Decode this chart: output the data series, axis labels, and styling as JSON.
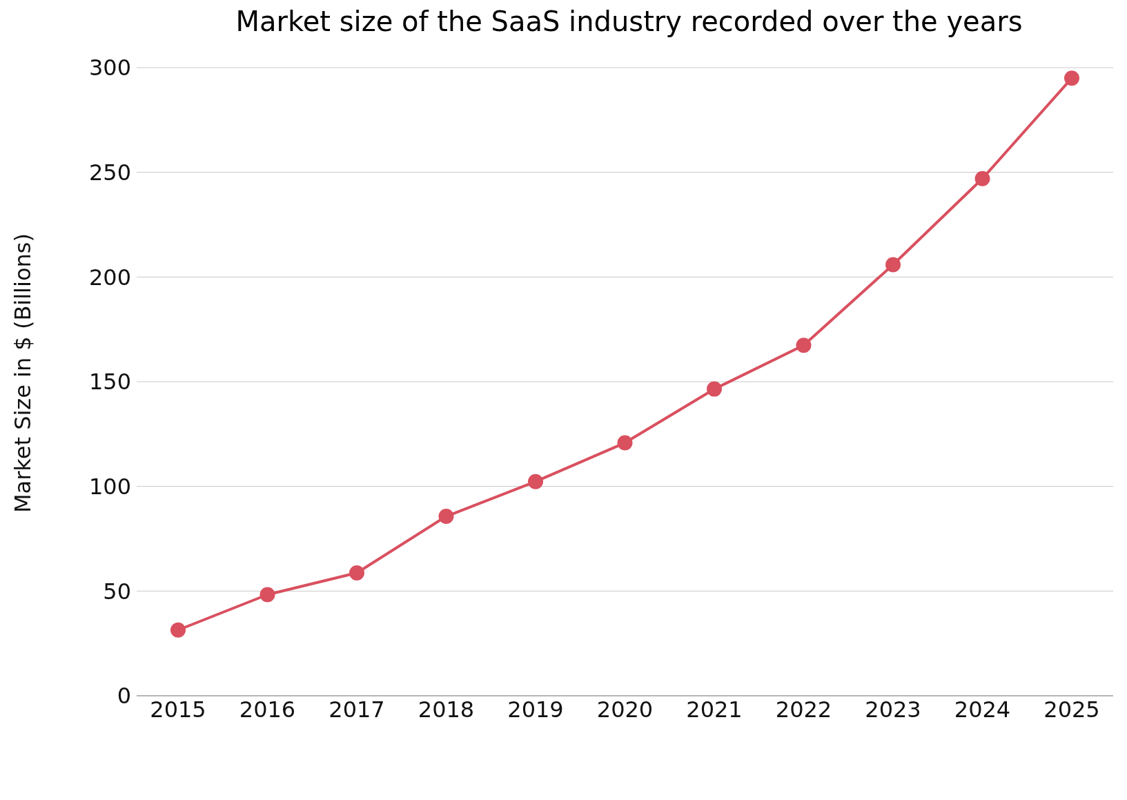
{
  "chart_data": {
    "type": "line",
    "title": "Market size of the SaaS industry recorded over the years",
    "ylabel": "Market Size in $ (Billions)",
    "categories": [
      "2015",
      "2016",
      "2017",
      "2018",
      "2019",
      "2020",
      "2021",
      "2022",
      "2023",
      "2024",
      "2025"
    ],
    "series": [
      {
        "color": "#d9505f",
        "values": [
          31.4,
          48.3,
          58.7,
          85.7,
          102.3,
          120.8,
          146.5,
          167.4,
          205.9,
          247.0,
          295.0
        ]
      }
    ],
    "ylim": [
      0,
      300
    ],
    "yticks": [
      0,
      50,
      100,
      150,
      200,
      250,
      300
    ],
    "grid": "y",
    "marker": "circle",
    "line_style": "solid",
    "legend": false
  }
}
